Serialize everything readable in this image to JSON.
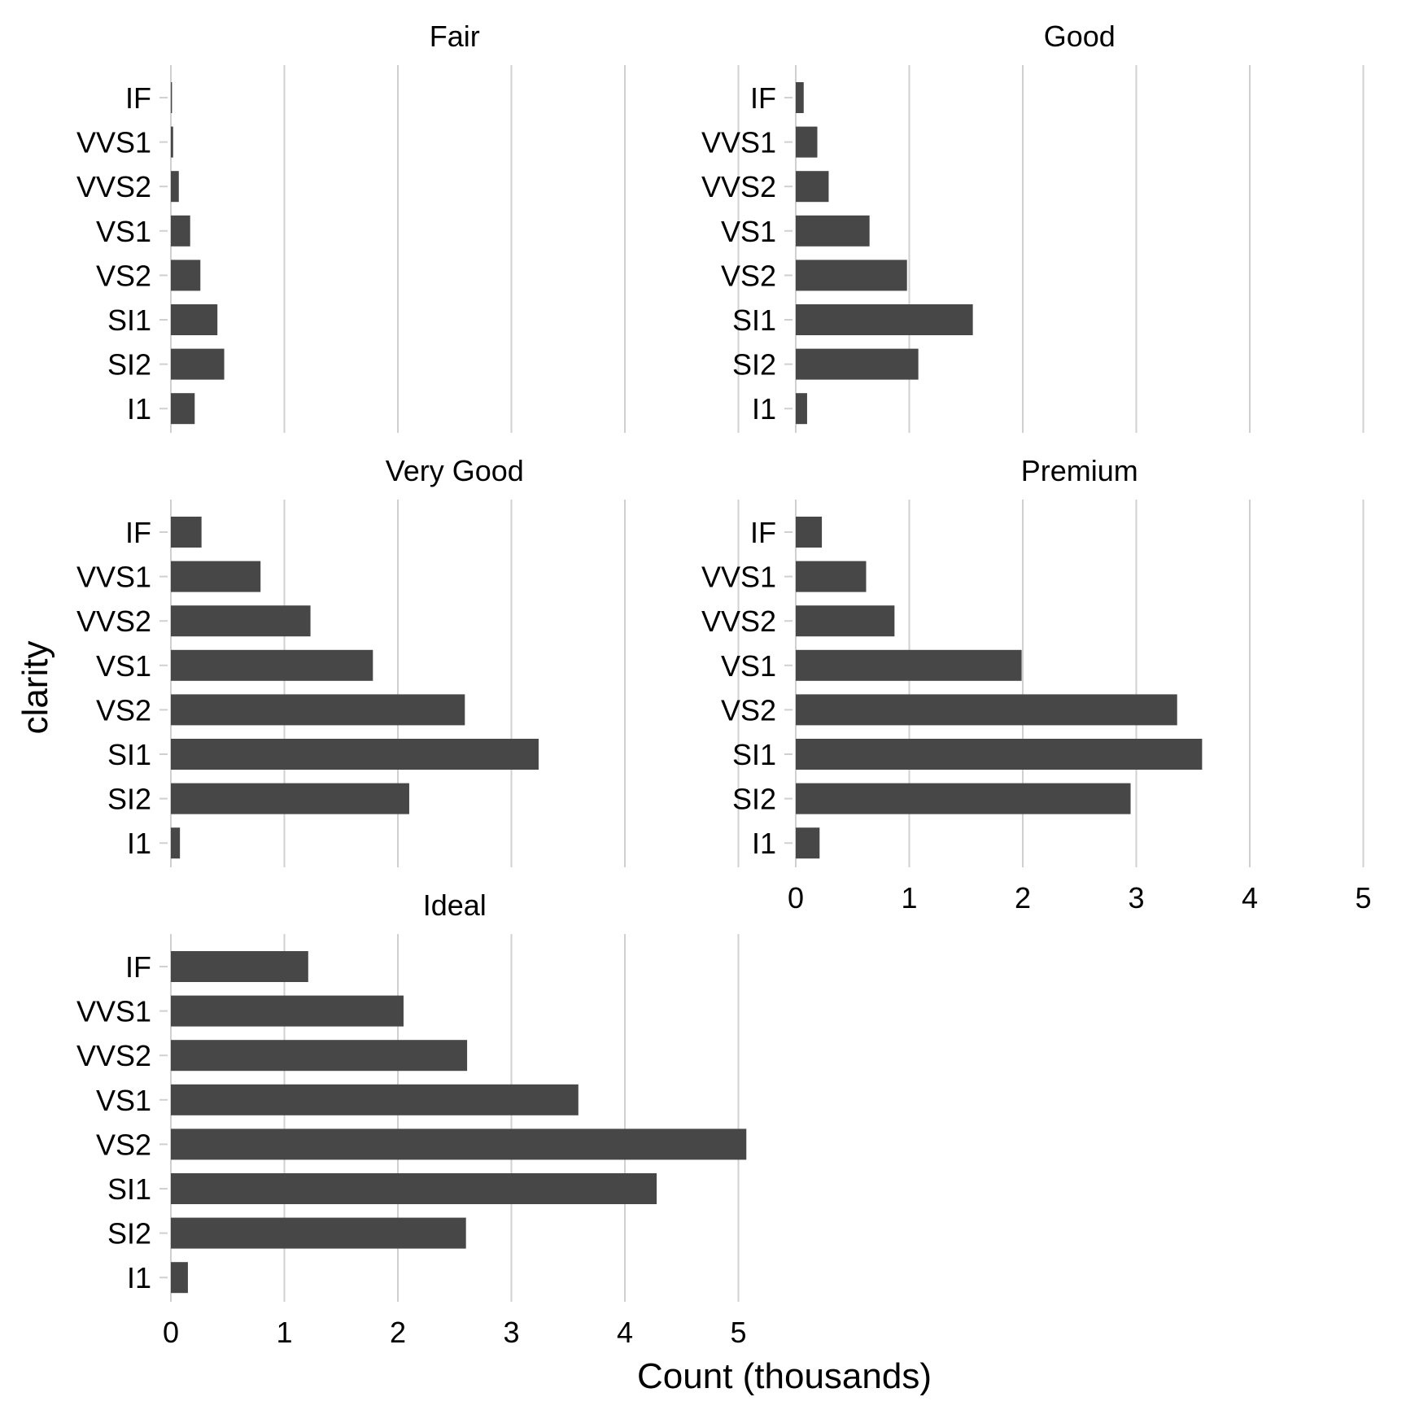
{
  "chart_data": {
    "type": "bar",
    "orientation": "horizontal",
    "xlabel": "Count (thousands)",
    "ylabel": "clarity",
    "xlim": [
      0,
      5
    ],
    "x_ticks": [
      "0",
      "1",
      "2",
      "3",
      "4",
      "5"
    ],
    "categories": [
      "I1",
      "SI2",
      "SI1",
      "VS2",
      "VS1",
      "VVS2",
      "VVS1",
      "IF"
    ],
    "grid": "vertical major gridlines",
    "bar_color": "#474747",
    "grid_color": "#d0d0d0",
    "facets": [
      {
        "name": "Fair",
        "values": [
          0.21,
          0.47,
          0.41,
          0.26,
          0.17,
          0.07,
          0.02,
          0.01
        ]
      },
      {
        "name": "Good",
        "values": [
          0.1,
          1.08,
          1.56,
          0.98,
          0.65,
          0.29,
          0.19,
          0.07
        ]
      },
      {
        "name": "Very Good",
        "values": [
          0.08,
          2.1,
          3.24,
          2.59,
          1.78,
          1.23,
          0.79,
          0.27
        ]
      },
      {
        "name": "Premium",
        "values": [
          0.21,
          2.95,
          3.58,
          3.36,
          1.99,
          0.87,
          0.62,
          0.23
        ]
      },
      {
        "name": "Ideal",
        "values": [
          0.15,
          2.6,
          4.28,
          5.07,
          3.59,
          2.61,
          2.05,
          1.21
        ]
      }
    ]
  }
}
